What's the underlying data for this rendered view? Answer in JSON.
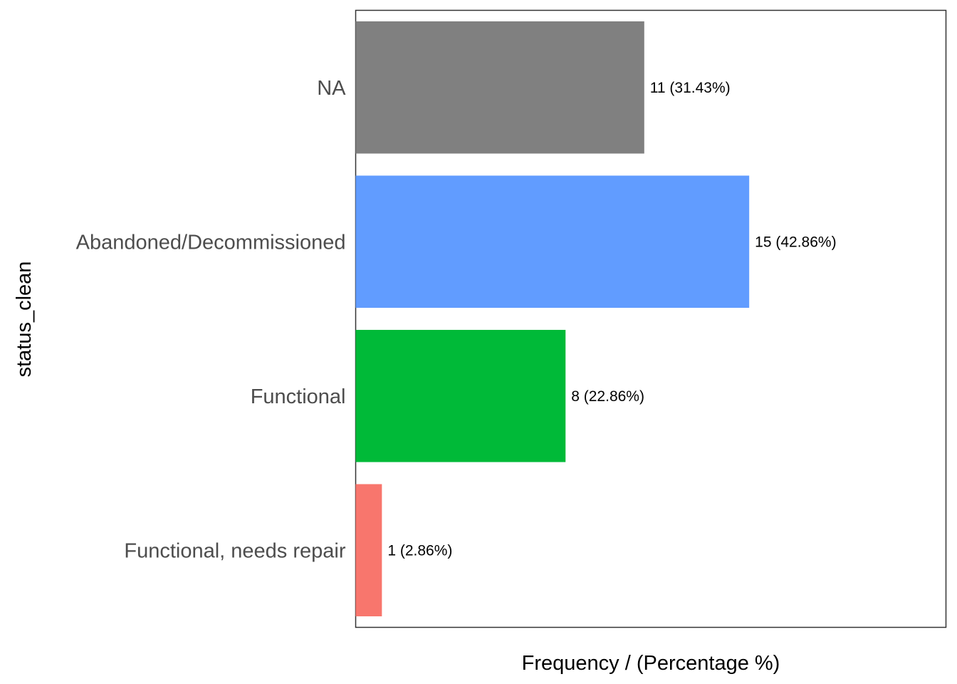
{
  "chart_data": {
    "type": "bar",
    "orientation": "horizontal",
    "categories": [
      "NA",
      "Abandoned/Decommissioned",
      "Functional",
      "Functional, needs repair"
    ],
    "values": [
      11,
      15,
      8,
      1
    ],
    "labels": [
      "11 (31.43%)",
      "15 (42.86%)",
      "8 (22.86%)",
      "1 (2.86%)"
    ],
    "colors": [
      "#808080",
      "#619CFF",
      "#00BA38",
      "#F8766D"
    ],
    "xlabel": "Frequency / (Percentage %)",
    "ylabel": "status_clean",
    "xlim": [
      0,
      22.5
    ],
    "grid": false,
    "legend": "none"
  }
}
